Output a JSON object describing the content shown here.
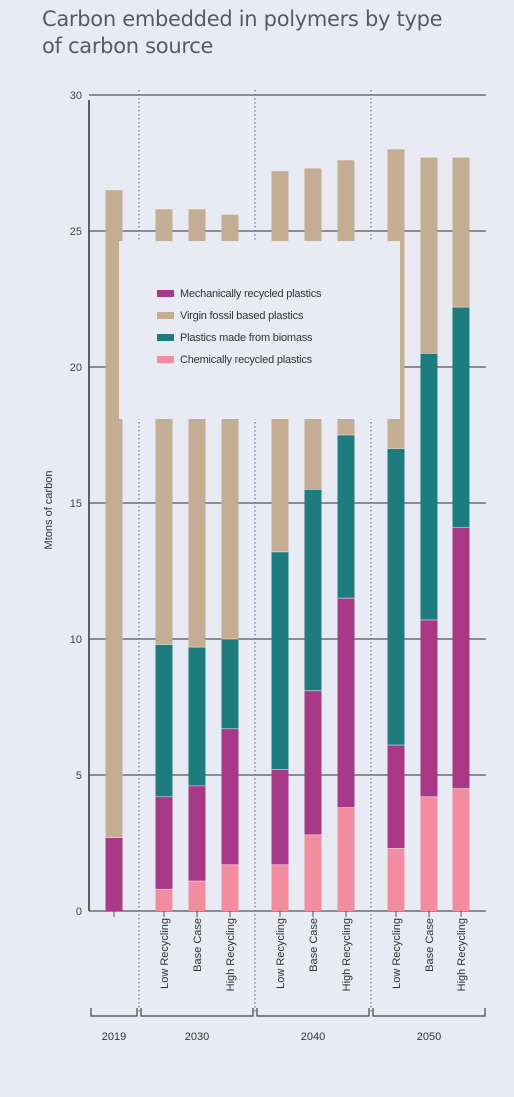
{
  "title": "Carbon embedded in polymers by type of carbon source",
  "chart_data": {
    "type": "bar",
    "stacked": true,
    "title": "Carbon embedded in polymers by type of carbon source",
    "ylabel": "Mtons of carbon",
    "xlabel": "",
    "ylim": [
      0,
      30
    ],
    "yticks": [
      0,
      5,
      10,
      15,
      20,
      25,
      30
    ],
    "grid": true,
    "legend_position": "inside-upper-left",
    "groups": [
      {
        "label": "2019",
        "categories": [
          ""
        ]
      },
      {
        "label": "2030",
        "categories": [
          "Low Recycling",
          "Base Case",
          "High Recycling"
        ]
      },
      {
        "label": "2040",
        "categories": [
          "Low Recycling",
          "Base Case",
          "High Recycling"
        ]
      },
      {
        "label": "2050",
        "categories": [
          "Low Recycling",
          "Base Case",
          "High Recycling"
        ]
      }
    ],
    "series": [
      {
        "name": "Chemically recycled plastics",
        "color": "#f28da0",
        "values": [
          0,
          0.8,
          1.1,
          1.7,
          1.7,
          2.8,
          3.8,
          2.3,
          4.2,
          4.5
        ]
      },
      {
        "name": "Mechanically recycled plastics",
        "color": "#a83888",
        "values": [
          2.7,
          3.4,
          3.5,
          5.0,
          3.5,
          5.3,
          7.7,
          3.8,
          6.5,
          9.6
        ]
      },
      {
        "name": "Plastics made from biomass",
        "color": "#1e7b7e",
        "values": [
          0,
          5.6,
          5.1,
          3.3,
          8.0,
          7.4,
          6.0,
          10.9,
          9.8,
          8.1
        ]
      },
      {
        "name": "Virgin fossil based plastics",
        "color": "#c4ad92",
        "values": [
          23.8,
          16.0,
          16.1,
          15.6,
          14.0,
          11.8,
          10.1,
          11.0,
          7.2,
          5.5
        ]
      }
    ],
    "legend_order": [
      "Mechanically recycled plastics",
      "Virgin fossil based plastics",
      "Plastics made from biomass",
      "Chemically recycled plastics"
    ]
  }
}
